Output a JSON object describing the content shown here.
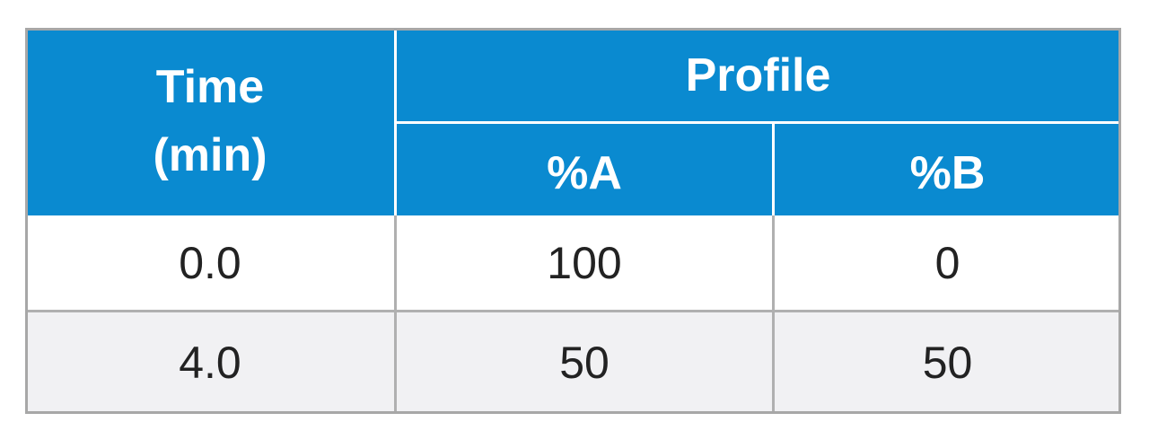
{
  "table": {
    "header": {
      "time": [
        "Time",
        "(min)"
      ],
      "profile": "Profile",
      "columns": [
        "%A",
        "%B"
      ]
    },
    "rows": [
      [
        "0.0",
        "100",
        "0"
      ],
      [
        "4.0",
        "50",
        "50"
      ]
    ]
  }
}
